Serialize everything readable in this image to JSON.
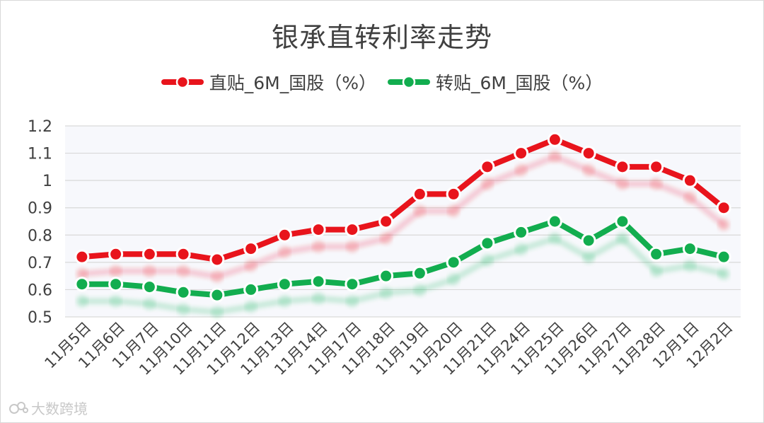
{
  "chart_data": {
    "type": "line",
    "title": "银承直转利率走势",
    "xlabel": "",
    "ylabel": "",
    "categories": [
      "11月5日",
      "11月6日",
      "11月7日",
      "11月10日",
      "11月11日",
      "11月12日",
      "11月13日",
      "11月14日",
      "11月17日",
      "11月18日",
      "11月19日",
      "11月20日",
      "11月21日",
      "11月24日",
      "11月25日",
      "11月26日",
      "11月27日",
      "11月28日",
      "12月1日",
      "12月2日"
    ],
    "series": [
      {
        "name": "直贴_6M_国股（%）",
        "color": "#e8141c",
        "values": [
          0.72,
          0.73,
          0.73,
          0.73,
          0.71,
          0.75,
          0.8,
          0.82,
          0.82,
          0.85,
          0.95,
          0.95,
          1.05,
          1.1,
          1.15,
          1.1,
          1.05,
          1.05,
          1.0,
          0.9
        ]
      },
      {
        "name": "转贴_6M_国股（%）",
        "color": "#12ad4f",
        "values": [
          0.62,
          0.62,
          0.61,
          0.59,
          0.58,
          0.6,
          0.62,
          0.63,
          0.62,
          0.65,
          0.66,
          0.7,
          0.77,
          0.81,
          0.85,
          0.78,
          0.85,
          0.73,
          0.75,
          0.72
        ]
      }
    ],
    "yticks": [
      "1.2",
      "1.1",
      "1",
      "0.9",
      "0.8",
      "0.7",
      "0.6",
      "0.5"
    ],
    "ylim": [
      0.5,
      1.2
    ],
    "grid": true,
    "legend_position": "top-center"
  },
  "watermark": {
    "text": "大数跨境"
  }
}
